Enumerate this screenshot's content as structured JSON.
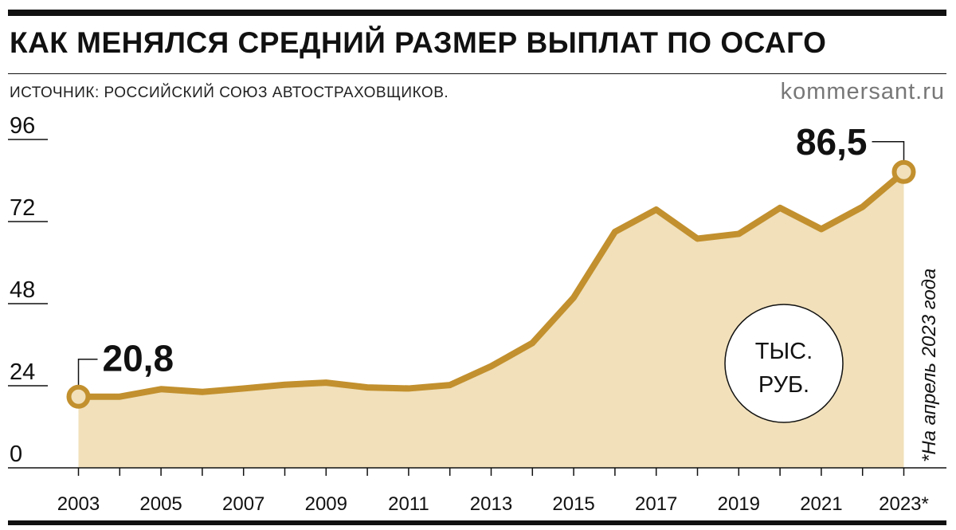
{
  "header": {
    "title": "КАК МЕНЯЛСЯ СРЕДНИЙ РАЗМЕР ВЫПЛАТ ПО ОСАГО",
    "source": "ИСТОЧНИК: РОССИЙСКИЙ СОЮЗ АВТОСТРАХОВЩИКОВ.",
    "brand": "kommersant.ru"
  },
  "colors": {
    "line": "#C2902E",
    "fill": "#F1E0BA",
    "marker_fill": "#F1E0BA"
  },
  "chart_data": {
    "type": "area",
    "x": [
      2003,
      2004,
      2005,
      2006,
      2007,
      2008,
      2009,
      2010,
      2011,
      2012,
      2013,
      2014,
      2015,
      2016,
      2017,
      2018,
      2019,
      2020,
      2021,
      2022,
      2023
    ],
    "values": [
      20.8,
      20.8,
      23.0,
      22.2,
      23.2,
      24.3,
      24.9,
      23.5,
      23.2,
      24.2,
      29.7,
      36.5,
      49.8,
      69.0,
      75.5,
      67.0,
      68.4,
      76.0,
      69.8,
      76.3,
      86.5
    ],
    "ylim": [
      0,
      96
    ],
    "yticks": [
      "96",
      "72",
      "48",
      "24",
      "0"
    ],
    "xtick_labels": [
      "2003",
      "2005",
      "2007",
      "2009",
      "2011",
      "2013",
      "2015",
      "2017",
      "2019",
      "2021",
      "2023*"
    ],
    "annotations": {
      "first": "20,8",
      "last": "86,5"
    },
    "unit_line1": "ТЫС.",
    "unit_line2": "РУБ.",
    "note": "*На апрель 2023 года",
    "grid": false,
    "legend": "none"
  }
}
